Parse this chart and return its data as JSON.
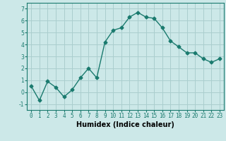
{
  "x": [
    0,
    1,
    2,
    3,
    4,
    5,
    6,
    7,
    8,
    9,
    10,
    11,
    12,
    13,
    14,
    15,
    16,
    17,
    18,
    19,
    20,
    21,
    22,
    23
  ],
  "y": [
    0.5,
    -0.7,
    0.9,
    0.4,
    -0.4,
    0.2,
    1.2,
    2.0,
    1.2,
    4.2,
    5.2,
    5.4,
    6.3,
    6.7,
    6.3,
    6.2,
    5.4,
    4.3,
    3.8,
    3.3,
    3.3,
    2.8,
    2.5,
    2.8
  ],
  "color": "#1a7a6e",
  "bg_color": "#cce8e8",
  "grid_color": "#aacece",
  "xlabel": "Humidex (Indice chaleur)",
  "xlim": [
    -0.5,
    23.5
  ],
  "ylim": [
    -1.5,
    7.5
  ],
  "yticks": [
    -1,
    0,
    1,
    2,
    3,
    4,
    5,
    6,
    7
  ],
  "xticks": [
    0,
    1,
    2,
    3,
    4,
    5,
    6,
    7,
    8,
    9,
    10,
    11,
    12,
    13,
    14,
    15,
    16,
    17,
    18,
    19,
    20,
    21,
    22,
    23
  ],
  "marker": "D",
  "markersize": 2.5,
  "linewidth": 1.0,
  "xlabel_fontsize": 7,
  "tick_fontsize": 5.5,
  "spine_color": "#1a7a6e"
}
